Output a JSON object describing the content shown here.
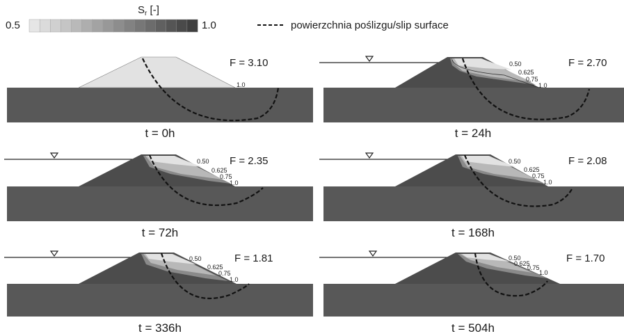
{
  "legend": {
    "sr_symbol": "S",
    "sr_subscript": "r",
    "sr_unit": " [-]",
    "scale_min": "0.5",
    "scale_max": "1.0",
    "scale_from_color": "#e6e6e6",
    "scale_to_color": "#3f3f3f",
    "scale_steps": 16,
    "slip_surface_label": "powierzchnia poślizgu/slip surface"
  },
  "colors": {
    "foundation": "#585858",
    "dry_embankment": "#e2e2e2",
    "dark_zone": "#4c4c4c",
    "mid_zone": "#8a8a8a",
    "light_zone": "#b8b8b8",
    "slip_surface": "#111111"
  },
  "panels": [
    {
      "id": "t0",
      "time_label": "t = 0h",
      "factor": "F = 3.10",
      "water_level": false,
      "contours": [
        "1.0"
      ]
    },
    {
      "id": "t24",
      "time_label": "t = 24h",
      "factor": "F = 2.70",
      "water_level": true,
      "contours": [
        "0.50",
        "0.625",
        "0.75",
        "1.0"
      ]
    },
    {
      "id": "t72",
      "time_label": "t = 72h",
      "factor": "F = 2.35",
      "water_level": true,
      "contours": [
        "0.50",
        "0.625",
        "0.75",
        "1.0"
      ]
    },
    {
      "id": "t168",
      "time_label": "t = 168h",
      "factor": "F = 2.08",
      "water_level": true,
      "contours": [
        "0.50",
        "0.625",
        "0.75",
        "1.0"
      ]
    },
    {
      "id": "t336",
      "time_label": "t = 336h",
      "factor": "F = 1.81",
      "water_level": true,
      "contours": [
        "0.50",
        "0.625",
        "0.75",
        "1.0"
      ]
    },
    {
      "id": "t504",
      "time_label": "t = 504h",
      "factor": "F = 1.70",
      "water_level": true,
      "contours": [
        "0.50",
        "0.625",
        "0.75",
        "1.0"
      ]
    }
  ]
}
